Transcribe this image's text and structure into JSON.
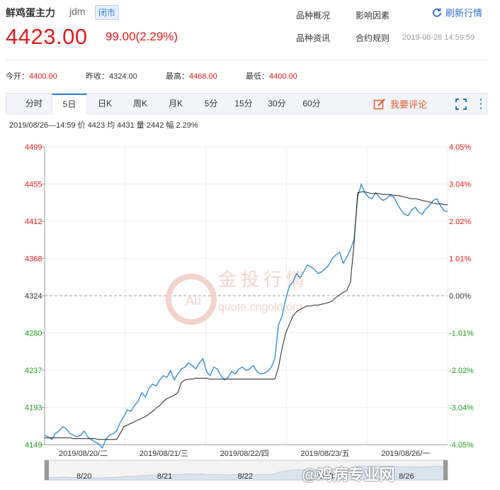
{
  "header": {
    "name": "鲜鸡蛋主力",
    "code": "jdm",
    "status": "闭市",
    "price": "4423.00",
    "change": "99.00(2.29%)",
    "links": [
      "品种概况",
      "影响因素",
      "品种资讯",
      "合约规则"
    ],
    "refresh_label": "刷新行情",
    "timestamp": "2019-08-26 14:59:59"
  },
  "stats": {
    "open_label": "今开：",
    "open": "4400.00",
    "prev_label": "昨收：",
    "prev": "4324.00",
    "high_label": "最高：",
    "high": "4468.00",
    "low_label": "最低：",
    "low": "4400.00"
  },
  "tabs": [
    "分时",
    "5日",
    "日K",
    "周K",
    "月K",
    "5分",
    "15分",
    "30分",
    "60分"
  ],
  "active_tab": "5日",
  "comment_label": "我要评论",
  "infoline": "2019/08/26—14:59  价 4423  均 4431  量 2442  幅 2.29%",
  "watermark": {
    "brand": "金投行情",
    "domain": "quote.cngold.org",
    "logo_text": "Au",
    "corner": "@鸡病专业网"
  },
  "colors": {
    "up": "#e21c1c",
    "down": "#1e9e1e",
    "price_line": "#2a86c9",
    "avg_line": "#222222",
    "accent": "#3a7fd5"
  },
  "chart_data": {
    "type": "line",
    "y_left_ticks": [
      "4499",
      "4455",
      "4412",
      "4368",
      "4324",
      "4280",
      "4237",
      "4193",
      "4149"
    ],
    "y_right_ticks": [
      "4.05%",
      "3.04%",
      "2.02%",
      "1.01%",
      "0.00%",
      "-1.01%",
      "-2.02%",
      "-3.04%",
      "-4.05%"
    ],
    "ylim": [
      4149,
      4499
    ],
    "baseline": 4324,
    "x_labels": [
      "2019/08/20/二",
      "2019/08/21/三",
      "2019/08/22/四",
      "2019/08/23/五",
      "2019/08/26/一"
    ],
    "navigator_labels": [
      "8/20",
      "8/21",
      "8/22",
      "8/23",
      "8/26"
    ],
    "series": [
      {
        "name": "价",
        "values": [
          4160,
          4158,
          4155,
          4162,
          4165,
          4170,
          4168,
          4162,
          4160,
          4158,
          4160,
          4165,
          4158,
          4155,
          4152,
          4150,
          4145,
          4155,
          4160,
          4162,
          4165,
          4175,
          4182,
          4190,
          4188,
          4195,
          4200,
          4210,
          4205,
          4215,
          4220,
          4218,
          4225,
          4230,
          4228,
          4236,
          4225,
          4232,
          4238,
          4240,
          4245,
          4242,
          4238,
          4245,
          4250,
          4235,
          4230,
          4240,
          4238,
          4230,
          4225,
          4228,
          4235,
          4232,
          4238,
          4240,
          4236,
          4238,
          4242,
          4235,
          4232,
          4233,
          4235,
          4240,
          4250,
          4290,
          4300,
          4320,
          4335,
          4340,
          4350,
          4345,
          4352,
          4360,
          4358,
          4355,
          4350,
          4352,
          4356,
          4360,
          4368,
          4372,
          4375,
          4362,
          4370,
          4378,
          4390,
          4440,
          4455,
          4445,
          4440,
          4438,
          4445,
          4440,
          4436,
          4438,
          4442,
          4440,
          4432,
          4425,
          4420,
          4418,
          4425,
          4428,
          4422,
          4420,
          4426,
          4430,
          4436,
          4438,
          4430,
          4424,
          4423
        ]
      },
      {
        "name": "均",
        "values": [
          4157,
          4157,
          4157,
          4157,
          4157,
          4157,
          4157,
          4157,
          4156,
          4156,
          4156,
          4156,
          4156,
          4156,
          4156,
          4155,
          4155,
          4155,
          4155,
          4155,
          4155,
          4162,
          4170,
          4172,
          4174,
          4176,
          4178,
          4180,
          4182,
          4185,
          4188,
          4192,
          4195,
          4200,
          4203,
          4205,
          4207,
          4210,
          4222,
          4225,
          4226,
          4226,
          4227,
          4227,
          4227,
          4227,
          4226,
          4226,
          4226,
          4226,
          4226,
          4226,
          4226,
          4226,
          4226,
          4226,
          4226,
          4226,
          4226,
          4226,
          4226,
          4226,
          4226,
          4226,
          4226,
          4240,
          4262,
          4280,
          4290,
          4300,
          4305,
          4308,
          4310,
          4312,
          4312,
          4313,
          4313,
          4314,
          4315,
          4316,
          4318,
          4322,
          4325,
          4328,
          4330,
          4340,
          4385,
          4445,
          4446,
          4446,
          4445,
          4444,
          4444,
          4444,
          4443,
          4443,
          4443,
          4442,
          4442,
          4441,
          4440,
          4439,
          4438,
          4438,
          4437,
          4436,
          4435,
          4434,
          4433,
          4432,
          4432,
          4431,
          4431
        ]
      }
    ]
  }
}
